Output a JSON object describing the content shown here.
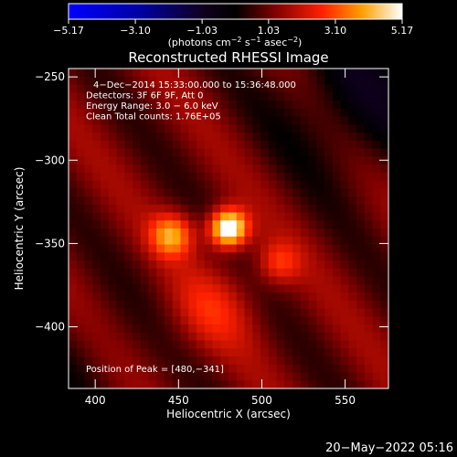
{
  "chart_data": {
    "type": "heatmap",
    "title": "Reconstructed RHESSI Image",
    "xlabel": "Heliocentric X (arcsec)",
    "ylabel": "Heliocentric Y (arcsec)",
    "xlim": [
      384,
      576
    ],
    "ylim": [
      -437,
      -245
    ],
    "x_ticks": [
      400,
      450,
      500,
      550
    ],
    "y_ticks": [
      -400,
      -350,
      -300,
      -250
    ],
    "x_tick_labels": [
      "400",
      "450",
      "500",
      "550"
    ],
    "y_tick_labels": [
      "−400",
      "−350",
      "−300",
      "−250"
    ],
    "colorbar": {
      "min": -5.17,
      "max": 5.17,
      "tick_values": [
        -5.17,
        -3.1,
        -1.03,
        1.03,
        3.1,
        5.17
      ],
      "tick_labels": [
        "−5.17",
        "−3.10",
        "−1.03",
        "1.03",
        "3.10",
        "5.17"
      ],
      "unit_prefix": "(photons cm",
      "unit_exp1": "−2",
      "unit_mid": " s",
      "unit_exp2": "−1",
      "unit_mid2": " asec",
      "unit_exp3": "−2",
      "unit_suffix": ")",
      "colors": [
        "#0000ff",
        "#000000",
        "#800000",
        "#ff2000",
        "#ffa000",
        "#ffffff"
      ]
    },
    "annotations": [
      "4−Dec−2014 15:33:00.000 to 15:36:48.000",
      "Detectors: 3F 6F 9F, Att 0",
      "Energy Range: 3.0 − 6.0 keV",
      "Clean    Total counts: 1.76E+05"
    ],
    "peak_label": "Position of Peak = [480,−341]",
    "sources": [
      {
        "x": 480,
        "y": -341,
        "amp": 5.17,
        "sigma": 8
      },
      {
        "x": 446,
        "y": -345,
        "amp": 2.8,
        "sigma": 9
      },
      {
        "x": 510,
        "y": -362,
        "amp": 1.6,
        "sigma": 9
      },
      {
        "x": 470,
        "y": -390,
        "amp": 1.2,
        "sigma": 18
      }
    ],
    "background_level": 1.0
  },
  "footer": {
    "date": "20−May−2022 05:16"
  }
}
